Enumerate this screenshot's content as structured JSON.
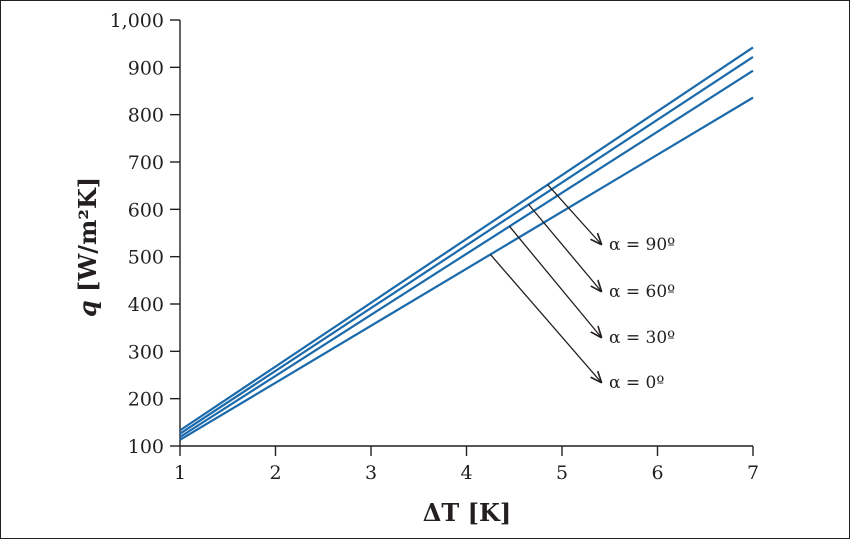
{
  "chart_data": {
    "type": "line",
    "title": "",
    "xlabel_prefix": "ΔT",
    "xlabel_unit": " [K]",
    "ylabel_prefix": "q",
    "ylabel_unit": " [W/m²K]",
    "xlim": [
      1,
      7
    ],
    "ylim": [
      100,
      1000
    ],
    "xticks": [
      1,
      2,
      3,
      4,
      5,
      6,
      7
    ],
    "yticks": [
      100,
      200,
      300,
      400,
      500,
      600,
      700,
      800,
      900,
      1000
    ],
    "ytick_labels": [
      "100",
      "200",
      "300",
      "400",
      "500",
      "600",
      "700",
      "800",
      "900",
      "1,000"
    ],
    "grid": false,
    "line_color": "#1a6aab",
    "series": [
      {
        "x": [
          1,
          7
        ],
        "values": [
          133,
          942
        ]
      },
      {
        "x": [
          1,
          7
        ],
        "values": [
          126,
          922
        ]
      },
      {
        "x": [
          1,
          7
        ],
        "values": [
          119,
          893
        ]
      },
      {
        "x": [
          1,
          7
        ],
        "values": [
          113,
          836
        ]
      }
    ],
    "annotations": [
      {
        "text": "α = 90º",
        "series": 0,
        "at_x": 4.85
      },
      {
        "text": "α = 60º",
        "series": 1,
        "at_x": 4.65
      },
      {
        "text": "α = 30º",
        "series": 2,
        "at_x": 4.45
      },
      {
        "text": "α = 0º",
        "series": 3,
        "at_x": 4.25
      }
    ]
  }
}
